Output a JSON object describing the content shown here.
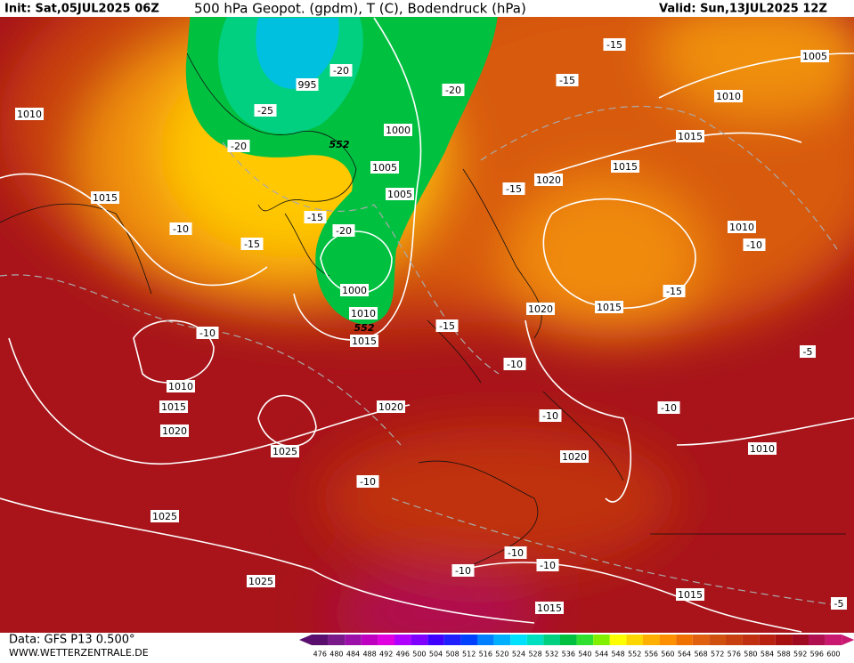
{
  "header": {
    "init": "Init: Sat,05JUL2025 06Z",
    "title": "500 hPa Geopot. (gpdm), T (C), Bodendruck (hPa)",
    "valid": "Valid: Sun,13JUL2025 12Z"
  },
  "footer": {
    "data": "Data: GFS P13 0.500°",
    "site": "WWW.WETTERZENTRALE.DE"
  },
  "map": {
    "labels": [
      "1010",
      "1015",
      "-10",
      "-15",
      "-10",
      "1010",
      "1015",
      "1020",
      "1025",
      "1020",
      "-10",
      "1025",
      "1025",
      "995",
      "-20",
      "-25",
      "-20",
      "1000",
      "1005",
      "1005",
      "-15",
      "-20",
      "1000",
      "1010",
      "1015",
      "-15",
      "-20",
      "-15",
      "-15",
      "1005",
      "1010",
      "1015",
      "1015",
      "1020",
      "-15",
      "1010",
      "-10",
      "-15",
      "1015",
      "1020",
      "-10",
      "-10",
      "-10",
      "1020",
      "-5",
      "1010",
      "-10",
      "-10",
      "-10",
      "1015",
      "1015",
      "-5"
    ],
    "height_labels": [
      "552",
      "552"
    ]
  },
  "scale": {
    "values": [
      476,
      480,
      484,
      488,
      492,
      496,
      500,
      504,
      508,
      512,
      516,
      520,
      524,
      528,
      532,
      536,
      540,
      544,
      548,
      552,
      556,
      560,
      564,
      568,
      572,
      576,
      580,
      584,
      588,
      592,
      596,
      600
    ],
    "colors": [
      "#5a0f6e",
      "#7a1a8a",
      "#9a10a8",
      "#c000c0",
      "#e000e0",
      "#b000ff",
      "#8000ff",
      "#4000ff",
      "#2020ff",
      "#0040ff",
      "#0080ff",
      "#00b0ff",
      "#00e0ff",
      "#00e0c0",
      "#00d080",
      "#00c040",
      "#30e030",
      "#80f000",
      "#ffff00",
      "#ffd700",
      "#ffb000",
      "#ff9000",
      "#f07000",
      "#e06010",
      "#d05010",
      "#c84010",
      "#c03010",
      "#b82010",
      "#a81010",
      "#a00a20",
      "#b01050",
      "#c81870"
    ]
  }
}
